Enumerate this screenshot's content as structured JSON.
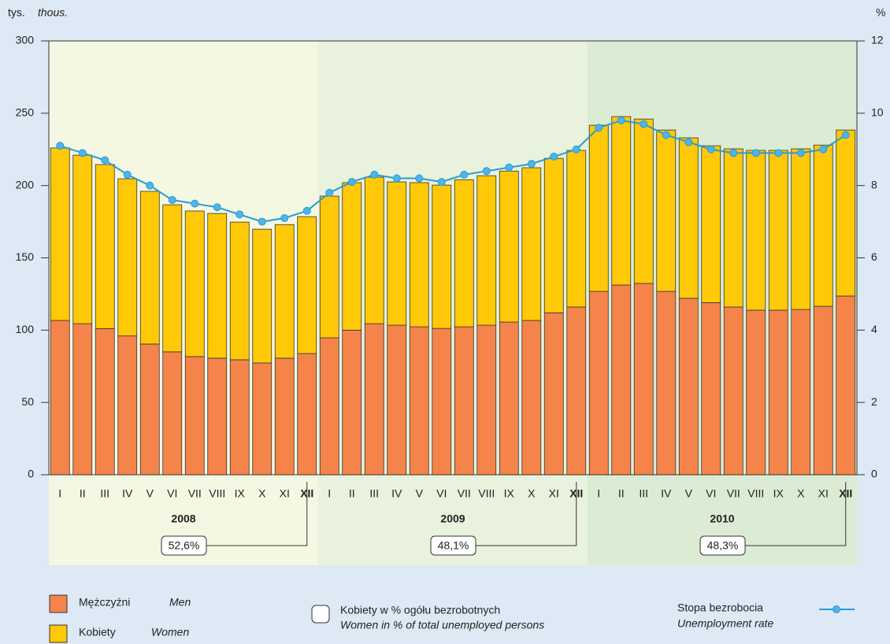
{
  "chart_data": {
    "type": "bar",
    "unit_left": "tys.",
    "unit_left_en": "thous.",
    "unit_right": "%",
    "categories": [
      "I",
      "II",
      "III",
      "IV",
      "V",
      "VI",
      "VII",
      "VIII",
      "IX",
      "X",
      "XI",
      "XII",
      "I",
      "II",
      "III",
      "IV",
      "V",
      "VI",
      "VII",
      "VIII",
      "IX",
      "X",
      "XI",
      "XII",
      "I",
      "II",
      "III",
      "IV",
      "V",
      "VI",
      "VII",
      "VIII",
      "IX",
      "X",
      "XI",
      "XII"
    ],
    "years": [
      {
        "name": "2008",
        "women_share": "52,6%"
      },
      {
        "name": "2009",
        "women_share": "48,1%"
      },
      {
        "name": "2010",
        "women_share": "48,3%"
      }
    ],
    "series": [
      {
        "name": "Mężczyźni",
        "name_en": "Men",
        "color": "#f5844a",
        "stack": true,
        "values": [
          106.7,
          104.5,
          101,
          96,
          90.4,
          85,
          81.7,
          80.6,
          79.5,
          77.3,
          80.6,
          83.8,
          94.7,
          100,
          104.5,
          103.4,
          102.3,
          101.2,
          102.3,
          103.4,
          105.6,
          106.7,
          112,
          116,
          126.8,
          131.2,
          132.3,
          126.8,
          122,
          119,
          116,
          113.8,
          113.8,
          114.3,
          116.5,
          123.6
        ]
      },
      {
        "name": "Kobiety",
        "name_en": "Women",
        "color": "#ffc907",
        "stack": true,
        "values": [
          119.3,
          116.5,
          113.5,
          108.7,
          105.6,
          101.7,
          100.7,
          100.1,
          95.2,
          92.5,
          92.4,
          94.7,
          98,
          102,
          101.3,
          99.1,
          99.7,
          99.1,
          101.7,
          103.4,
          104.4,
          105.6,
          106.8,
          108.3,
          114.9,
          116.5,
          113.7,
          111.6,
          111,
          108.5,
          109.4,
          110.5,
          110.5,
          111.1,
          111.5,
          114.8
        ]
      },
      {
        "name": "Stopa bezrobocia",
        "name_en": "Unemployment rate",
        "color": "#2a9bd6",
        "type": "line",
        "axis": "y2",
        "values": [
          9.1,
          8.9,
          8.7,
          8.3,
          8.0,
          7.6,
          7.5,
          7.4,
          7.2,
          7.0,
          7.1,
          7.3,
          7.8,
          8.1,
          8.3,
          8.2,
          8.2,
          8.1,
          8.3,
          8.4,
          8.5,
          8.6,
          8.8,
          9.0,
          9.6,
          9.8,
          9.7,
          9.4,
          9.2,
          9.0,
          8.9,
          8.9,
          8.9,
          8.9,
          9.0,
          9.4
        ]
      }
    ],
    "share_legend": "Kobiety w % ogółu bezrobotnych",
    "share_legend_en": "Women in % of total unemployed persons",
    "ylim": [
      0,
      300
    ],
    "yticks": [
      0,
      50,
      100,
      150,
      200,
      250,
      300
    ],
    "y2lim": [
      0,
      12
    ],
    "y2ticks": [
      0,
      2,
      4,
      6,
      8,
      10,
      12
    ],
    "grid": false
  }
}
